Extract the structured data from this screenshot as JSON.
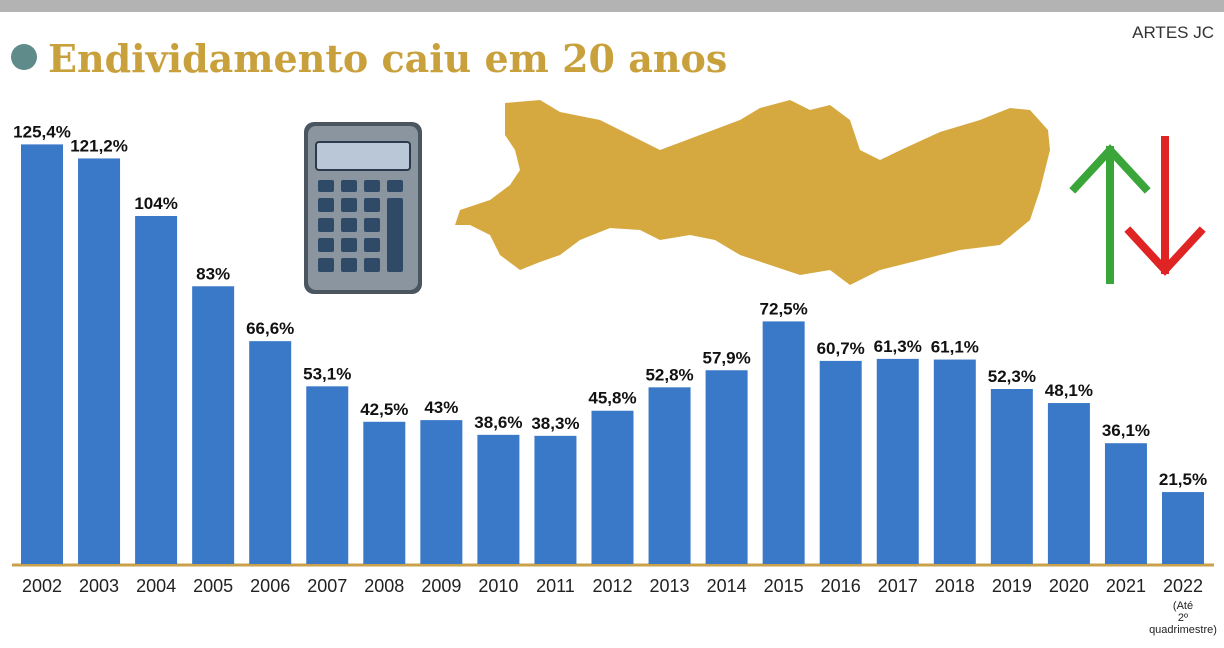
{
  "chart_data": {
    "type": "bar",
    "title": "Endividamento caiu em 20 anos",
    "credit": "ARTES JC",
    "categories": [
      "2002",
      "2003",
      "2004",
      "2005",
      "2006",
      "2007",
      "2008",
      "2009",
      "2010",
      "2011",
      "2012",
      "2013",
      "2014",
      "2015",
      "2016",
      "2017",
      "2018",
      "2019",
      "2020",
      "2021",
      "2022"
    ],
    "category_note": [
      "(Até",
      "2º",
      "quadrimestre)"
    ],
    "values": [
      125.4,
      121.2,
      104,
      83,
      66.6,
      53.1,
      42.5,
      43,
      38.6,
      38.3,
      45.8,
      52.8,
      57.9,
      72.5,
      60.7,
      61.3,
      61.1,
      52.3,
      48.1,
      36.1,
      21.5
    ],
    "value_labels": [
      "125,4%",
      "121,2%",
      "104%",
      "83%",
      "66,6%",
      "53,1%",
      "42,5%",
      "43%",
      "38,6%",
      "38,3%",
      "45,8%",
      "52,8%",
      "57,9%",
      "72,5%",
      "60,7%",
      "61,3%",
      "61,1%",
      "52,3%",
      "48,1%",
      "36,1%",
      "21,5%"
    ],
    "color": "#3a78c8",
    "ylim": [
      0,
      130
    ]
  }
}
